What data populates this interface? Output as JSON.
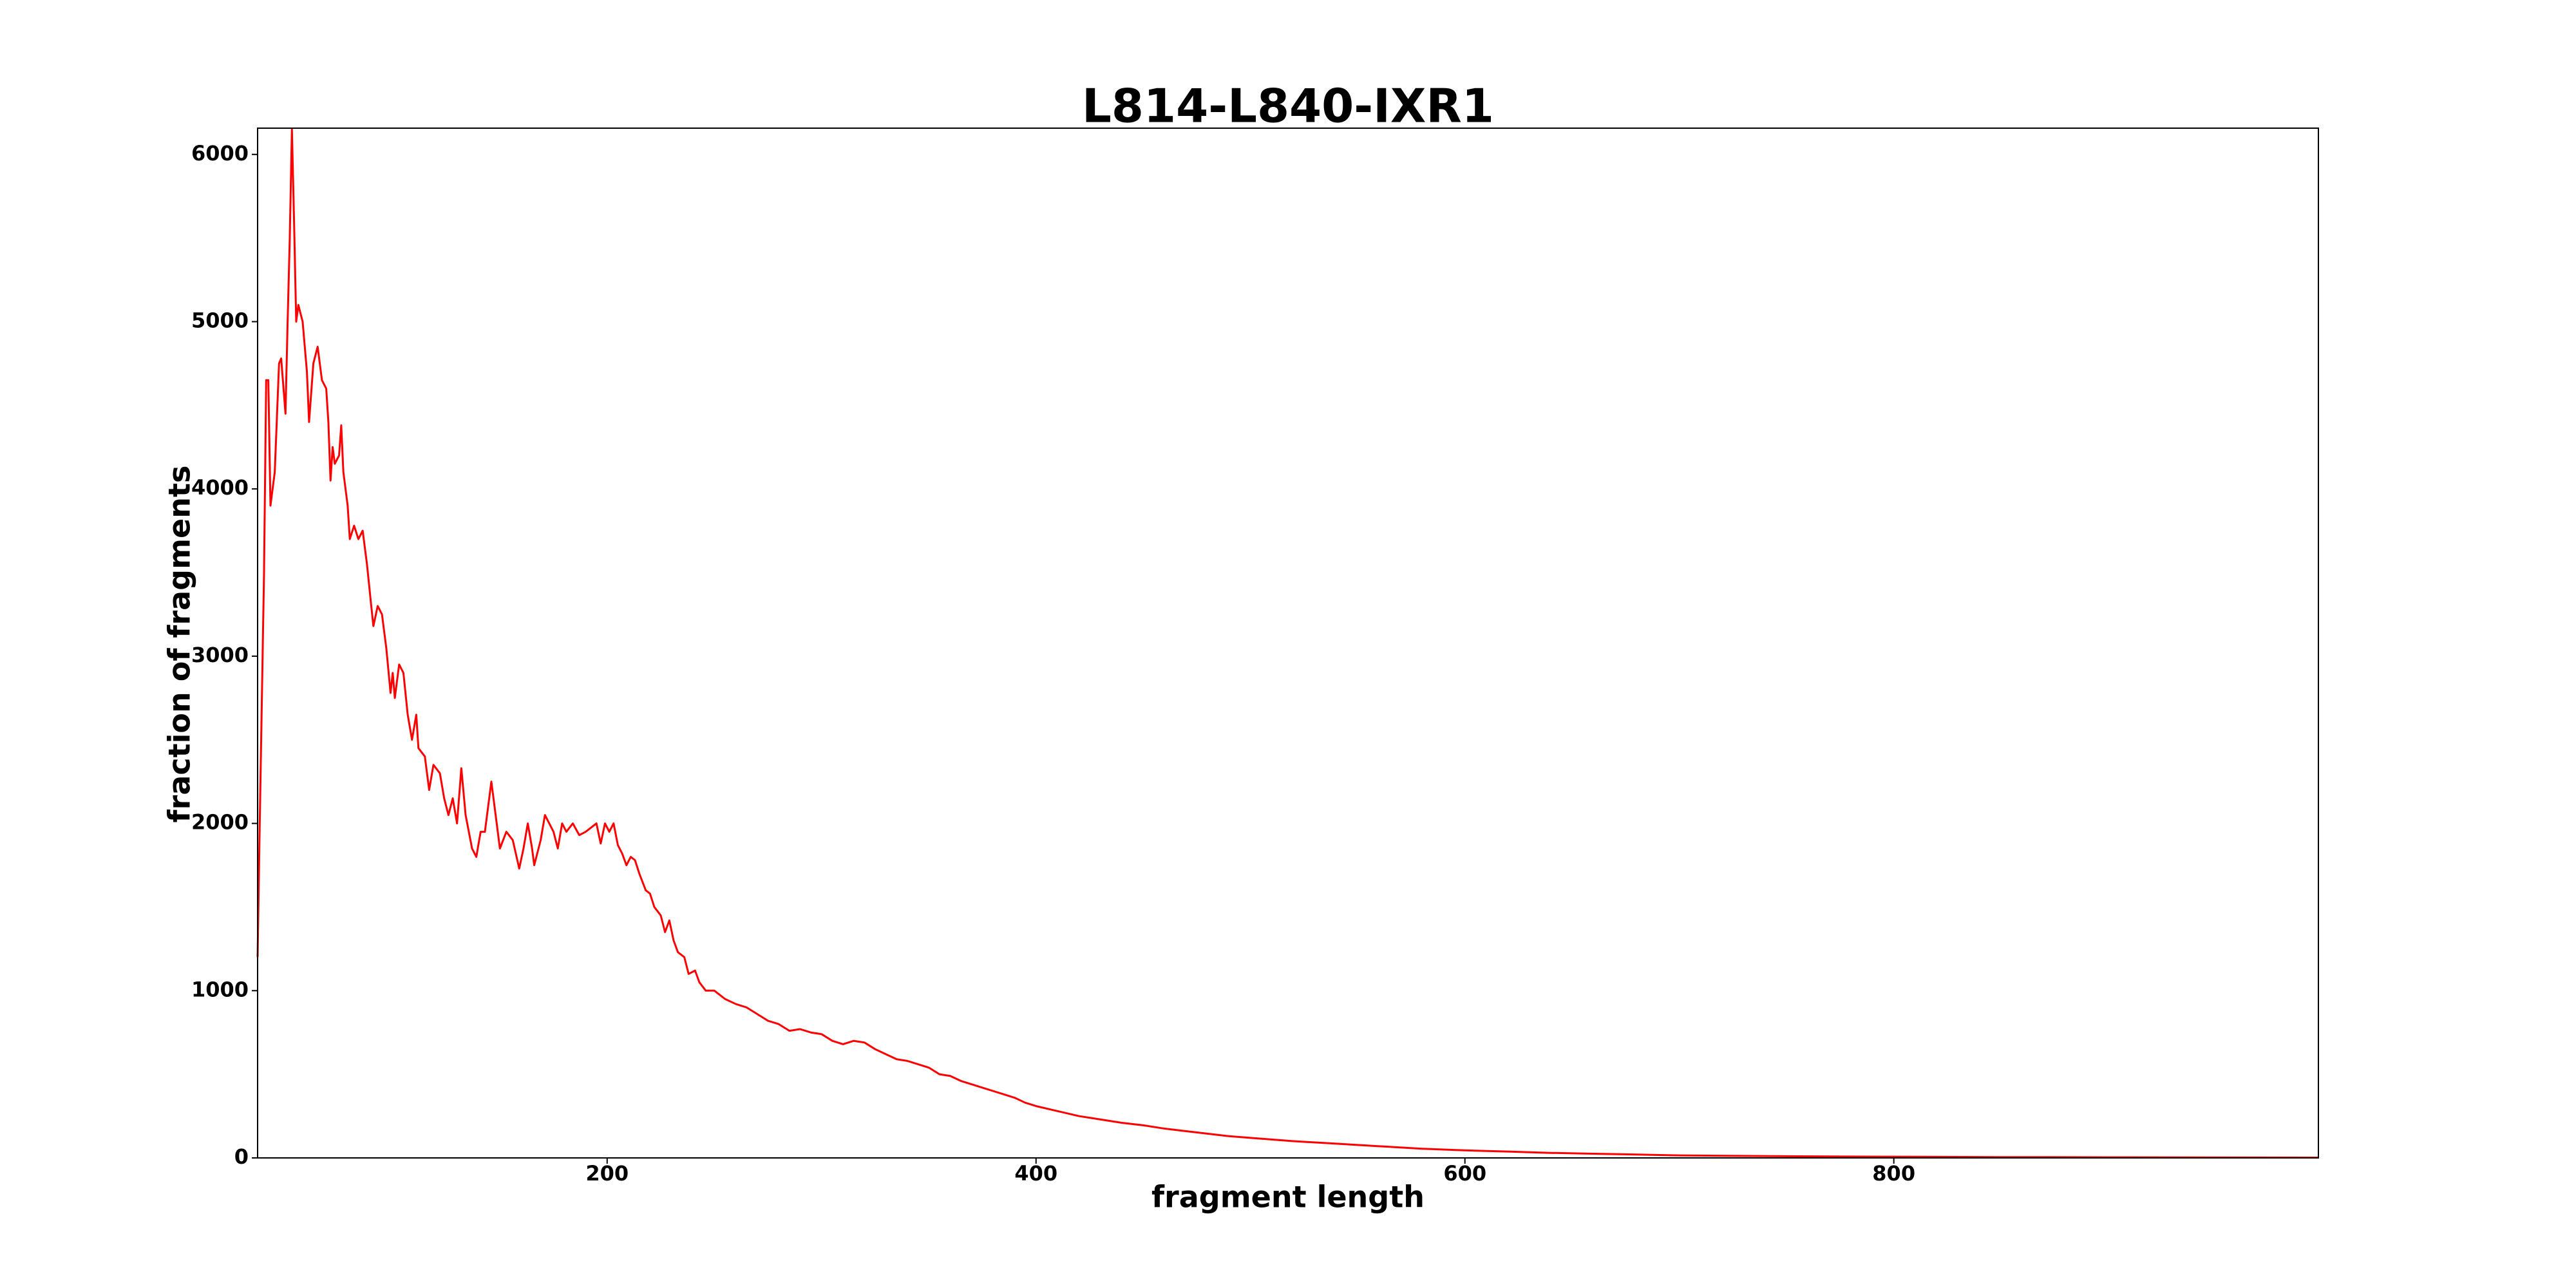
{
  "chart_data": {
    "type": "line",
    "title": "L814-L840-IXR1",
    "xlabel": "fragment length",
    "ylabel": "fraction of fragments",
    "color": "#ff0000",
    "x": [
      37,
      38,
      40,
      41,
      42,
      43,
      45,
      47,
      48,
      50,
      51,
      52,
      53,
      54,
      55,
      56,
      58,
      60,
      61,
      63,
      65,
      67,
      69,
      70,
      71,
      72,
      73,
      75,
      76,
      77,
      79,
      80,
      82,
      84,
      86,
      88,
      90,
      91,
      93,
      95,
      97,
      99,
      100,
      101,
      103,
      105,
      107,
      109,
      111,
      112,
      115,
      117,
      119,
      122,
      124,
      126,
      128,
      130,
      132,
      134,
      137,
      139,
      141,
      143,
      146,
      148,
      150,
      153,
      156,
      159,
      161,
      163,
      165,
      166,
      169,
      171,
      173,
      175,
      177,
      179,
      181,
      184,
      187,
      190,
      193,
      195,
      197,
      199,
      201,
      203,
      205,
      207,
      209,
      211,
      213,
      215,
      218,
      220,
      222,
      225,
      227,
      229,
      231,
      233,
      236,
      238,
      241,
      243,
      246,
      250,
      255,
      260,
      265,
      270,
      275,
      280,
      285,
      290,
      295,
      300,
      305,
      310,
      315,
      320,
      325,
      330,
      335,
      340,
      345,
      350,
      355,
      360,
      365,
      370,
      375,
      380,
      385,
      390,
      395,
      400,
      410,
      420,
      430,
      440,
      450,
      460,
      470,
      480,
      490,
      500,
      520,
      540,
      560,
      580,
      600,
      620,
      640,
      660,
      680,
      700,
      750,
      800,
      850,
      900,
      950,
      998
    ],
    "values": [
      1200,
      2000,
      3500,
      4650,
      4650,
      3900,
      4100,
      4750,
      4780,
      4450,
      5000,
      5500,
      6150,
      5600,
      5000,
      5100,
      5000,
      4700,
      4400,
      4750,
      4850,
      4650,
      4600,
      4400,
      4050,
      4250,
      4150,
      4200,
      4380,
      4100,
      3900,
      3700,
      3780,
      3700,
      3750,
      3550,
      3300,
      3180,
      3300,
      3250,
      3050,
      2780,
      2900,
      2750,
      2950,
      2900,
      2650,
      2500,
      2650,
      2450,
      2400,
      2200,
      2350,
      2300,
      2150,
      2050,
      2150,
      2000,
      2330,
      2050,
      1850,
      1800,
      1950,
      1950,
      2250,
      2050,
      1850,
      1950,
      1900,
      1730,
      1850,
      2000,
      1850,
      1750,
      1900,
      2050,
      2000,
      1950,
      1850,
      2000,
      1950,
      2000,
      1930,
      1950,
      1980,
      2000,
      1880,
      2000,
      1950,
      2000,
      1870,
      1820,
      1750,
      1800,
      1780,
      1700,
      1600,
      1580,
      1500,
      1450,
      1350,
      1420,
      1300,
      1230,
      1200,
      1100,
      1120,
      1050,
      1000,
      1000,
      950,
      920,
      900,
      860,
      820,
      800,
      760,
      770,
      750,
      740,
      700,
      680,
      700,
      690,
      650,
      620,
      590,
      580,
      560,
      540,
      500,
      490,
      460,
      440,
      420,
      400,
      380,
      360,
      330,
      310,
      280,
      250,
      230,
      210,
      195,
      175,
      160,
      145,
      130,
      120,
      100,
      85,
      70,
      55,
      45,
      38,
      30,
      25,
      20,
      15,
      10,
      7,
      5,
      4,
      3,
      2
    ],
    "xlim": [
      37,
      998
    ],
    "xticks": [
      200,
      400,
      600,
      800
    ],
    "ylim": [
      0,
      6157
    ],
    "yticks": [
      0,
      1000,
      2000,
      3000,
      4000,
      5000,
      6000
    ]
  }
}
